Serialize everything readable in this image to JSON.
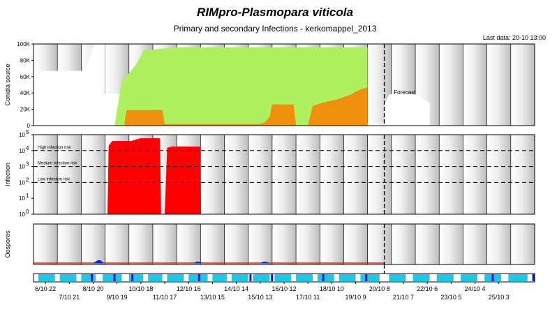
{
  "header": {
    "title": "RIMpro-Plasmopara viticola",
    "subtitle": "Primary and secondary Infections - kerkomappel_2013",
    "last_data": "Last data: 20-10 13:00"
  },
  "colors": {
    "green": "#b0f060",
    "orange": "#f0900a",
    "red": "#ff0000",
    "blue_band": "#22c5e8",
    "dark_blue": "#1020d0"
  },
  "chart_data": [
    {
      "type": "area",
      "ylabel": "Conidia source",
      "yticks": [
        "0",
        "20K",
        "40K",
        "60K",
        "80K",
        "100K"
      ],
      "ylim": [
        0,
        100000
      ],
      "forecast_label": "Forecast",
      "forecast_start": "20/10 13:00",
      "series": [
        {
          "color": "green",
          "x": [
            2.1,
            3.4,
            3.7,
            4.0,
            4.3,
            4.5,
            4.6,
            4.8,
            5.0,
            5.3,
            5.6,
            5.9,
            8.0,
            9.0,
            9.9,
            10.0,
            10.9,
            11.4,
            11.6,
            11.9,
            12.1,
            12.4,
            12.7,
            13.0,
            13.3,
            13.6,
            14.0
          ],
          "y": [
            0,
            0,
            55000,
            64000,
            75000,
            86000,
            92000,
            93000,
            93000,
            94000,
            95000,
            96000,
            96000,
            96000,
            96000,
            96000,
            96000,
            96000,
            96000,
            96000,
            96000,
            96000,
            96000,
            96000,
            96000,
            96000,
            96000
          ]
        },
        {
          "color": "orange",
          "x": [
            3.8,
            3.9,
            5.4,
            5.5,
            9.5,
            9.7,
            9.9,
            10.0,
            10.9,
            11.0,
            11.5,
            11.7,
            11.9,
            12.1,
            12.4,
            12.7,
            13.0,
            13.3,
            13.6,
            14.0
          ],
          "y": [
            0,
            19000,
            19000,
            2000,
            2000,
            4000,
            11000,
            26000,
            26000,
            0,
            0,
            24000,
            26000,
            28000,
            30000,
            32000,
            35000,
            38000,
            43000,
            47000
          ]
        }
      ]
    },
    {
      "type": "area",
      "ylabel": "Infection",
      "ylim": [
        1,
        100000
      ],
      "log_scale": true,
      "risk_levels": [
        {
          "label": "High infection risk",
          "value": 10000
        },
        {
          "label": "Medium infection risk",
          "value": 1000
        },
        {
          "label": "Low infection risk",
          "value": 100
        }
      ],
      "series": [
        {
          "color": "red",
          "x": [
            3.1,
            3.15,
            3.3,
            3.9,
            4.1,
            4.3,
            4.5,
            5.3,
            5.35
          ],
          "y": [
            1,
            20000,
            40000,
            40000,
            40000,
            50000,
            60000,
            60000,
            1
          ]
        },
        {
          "color": "red",
          "x": [
            5.5,
            5.6,
            5.8,
            7.0,
            7.02
          ],
          "y": [
            1,
            15000,
            18000,
            18000,
            1
          ]
        }
      ]
    },
    {
      "type": "area",
      "ylabel": "Oospores",
      "series": [
        {
          "color": "dark_blue",
          "x": [
            2.5,
            2.7,
            2.8,
            2.95
          ],
          "y": [
            0,
            1,
            1,
            0
          ]
        },
        {
          "color": "dark_blue",
          "x": [
            6.7,
            6.85,
            6.95,
            7.1
          ],
          "y": [
            0,
            0.5,
            0.5,
            0
          ]
        },
        {
          "color": "dark_blue",
          "x": [
            9.5,
            9.65,
            9.75,
            9.9
          ],
          "y": [
            0,
            0.5,
            0.5,
            0
          ]
        }
      ]
    }
  ],
  "dates_top": [
    "6/10 22",
    "8/10 20",
    "10/10 18",
    "12/10 16",
    "14/10 14",
    "16/10 12",
    "18/10 10",
    "20/10 8",
    "22/10 6",
    "24/10 4"
  ],
  "dates_bottom": [
    "7/10 21",
    "9/10 19",
    "11/10 17",
    "13/10 15",
    "15/10 13",
    "17/10 11",
    "19/10 9",
    "21/10 7",
    "23/10 5",
    "25/10 3"
  ]
}
